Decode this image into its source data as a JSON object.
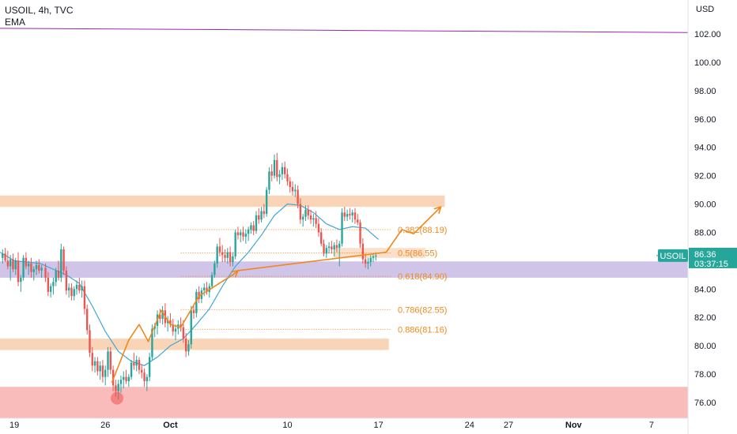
{
  "header": {
    "symbol_line": "USOIL, 4h, TVC",
    "indicator": "EMA"
  },
  "price_axis_unit": "USD",
  "colors": {
    "bull": "#26a69a",
    "bear": "#ef5350",
    "ema": "#3fa7d6",
    "trend": "#9c27b0",
    "zone": "#f7c59f",
    "support_zone": "#d1c4e9",
    "low_zone": "#f9b4b4",
    "fib": "#f0891c",
    "path": "#f0891c",
    "price_tag": "#26a69a"
  },
  "current_price": {
    "symbol": "USOIL",
    "price": "86.36",
    "countdown": "03:37:15"
  },
  "fib_levels": [
    {
      "ratio": "0.382",
      "price": 88.19,
      "label": "0.382(88.19)"
    },
    {
      "ratio": "0.5",
      "price": 86.55,
      "label": "0.5(86.55)"
    },
    {
      "ratio": "0.618",
      "price": 84.9,
      "label": "0.618(84.90)"
    },
    {
      "ratio": "0.786",
      "price": 82.55,
      "label": "0.786(82.55)"
    },
    {
      "ratio": "0.886",
      "price": 81.16,
      "label": "0.886(81.16)"
    }
  ],
  "chart_data": {
    "type": "candlestick",
    "title": "USOIL, 4h, TVC",
    "ylabel": "USD",
    "ylim": [
      75,
      104.5
    ],
    "y_ticks": [
      76,
      78,
      80,
      82,
      84,
      86,
      88,
      90,
      92,
      94,
      96,
      98,
      100,
      102
    ],
    "y_tick_labels": [
      "76.00",
      "78.00",
      "80.00",
      "82.00",
      "84.00",
      "86.00",
      "88.00",
      "90.00",
      "92.00",
      "94.00",
      "96.00",
      "98.00",
      "100.00",
      "102.00"
    ],
    "x_ticks": [
      {
        "label": "19",
        "day": 0
      },
      {
        "label": "26",
        "day": 7
      },
      {
        "label": "Oct",
        "day": 12
      },
      {
        "label": "10",
        "day": 21
      },
      {
        "label": "17",
        "day": 28
      },
      {
        "label": "24",
        "day": 35
      },
      {
        "label": "27",
        "day": 38
      },
      {
        "label": "Nov",
        "day": 43
      },
      {
        "label": "7",
        "day": 49
      }
    ],
    "xlim_days": [
      -1.1,
      51.8
    ],
    "ema_period_label": "EMA",
    "candles_note": "day offsets from Sep 19",
    "candles": [
      [
        -0.9,
        86.2,
        86.8,
        85.8,
        86.5
      ],
      [
        -0.7,
        86.5,
        86.9,
        85.9,
        86.0
      ],
      [
        -0.5,
        86.0,
        86.7,
        85.4,
        85.6
      ],
      [
        -0.3,
        85.6,
        86.4,
        84.6,
        86.1
      ],
      [
        -0.1,
        86.1,
        86.5,
        85.2,
        85.4
      ],
      [
        0.1,
        85.4,
        86.2,
        85.0,
        86.0
      ],
      [
        0.3,
        86.0,
        86.6,
        84.2,
        84.5
      ],
      [
        0.5,
        84.5,
        85.0,
        83.8,
        84.8
      ],
      [
        0.7,
        84.8,
        86.4,
        84.6,
        86.2
      ],
      [
        0.9,
        86.2,
        86.6,
        85.4,
        85.6
      ],
      [
        1.1,
        85.6,
        86.0,
        85.0,
        85.8
      ],
      [
        1.3,
        85.8,
        86.2,
        84.8,
        85.2
      ],
      [
        1.5,
        85.2,
        85.6,
        84.6,
        85.4
      ],
      [
        1.7,
        85.4,
        86.0,
        85.0,
        85.7
      ],
      [
        1.9,
        85.7,
        86.1,
        85.1,
        85.3
      ],
      [
        2.1,
        85.3,
        85.7,
        84.8,
        85.5
      ],
      [
        2.4,
        85.5,
        85.8,
        84.5,
        84.8
      ],
      [
        2.6,
        84.8,
        85.2,
        83.5,
        83.8
      ],
      [
        2.8,
        83.8,
        84.4,
        83.4,
        84.2
      ],
      [
        3.0,
        84.2,
        84.8,
        83.6,
        84.5
      ],
      [
        3.2,
        84.5,
        85.5,
        84.2,
        85.3
      ],
      [
        3.4,
        85.3,
        86.0,
        84.6,
        84.8
      ],
      [
        3.6,
        84.8,
        87.2,
        84.5,
        86.8
      ],
      [
        3.8,
        86.8,
        87.0,
        85.0,
        85.3
      ],
      [
        4.0,
        85.3,
        85.6,
        83.6,
        83.9
      ],
      [
        4.2,
        83.9,
        84.4,
        83.4,
        84.1
      ],
      [
        4.4,
        84.1,
        84.4,
        83.2,
        83.5
      ],
      [
        4.6,
        83.5,
        84.2,
        83.2,
        84.0
      ],
      [
        4.8,
        84.0,
        84.6,
        83.6,
        84.3
      ],
      [
        5.0,
        84.3,
        84.8,
        83.7,
        83.9
      ],
      [
        5.2,
        83.9,
        84.6,
        83.4,
        84.2
      ],
      [
        5.4,
        84.2,
        84.6,
        82.2,
        82.6
      ],
      [
        5.6,
        82.6,
        82.9,
        80.8,
        81.1
      ],
      [
        5.8,
        81.1,
        81.5,
        79.2,
        79.5
      ],
      [
        6.0,
        79.5,
        79.9,
        78.2,
        78.6
      ],
      [
        6.2,
        78.6,
        79.2,
        78.1,
        78.9
      ],
      [
        6.4,
        78.9,
        79.2,
        77.9,
        78.2
      ],
      [
        6.6,
        78.2,
        78.9,
        77.6,
        78.6
      ],
      [
        6.8,
        78.6,
        79.0,
        77.4,
        77.8
      ],
      [
        7.0,
        77.8,
        78.6,
        77.2,
        78.3
      ],
      [
        7.2,
        78.3,
        79.9,
        77.8,
        79.6
      ],
      [
        7.4,
        79.6,
        79.9,
        78.0,
        78.3
      ],
      [
        7.6,
        78.3,
        78.6,
        76.8,
        77.2
      ],
      [
        7.8,
        77.2,
        77.6,
        76.4,
        76.8
      ],
      [
        8.0,
        76.8,
        77.6,
        76.2,
        77.3
      ],
      [
        8.2,
        77.3,
        77.9,
        76.7,
        77.6
      ],
      [
        8.4,
        77.6,
        78.2,
        77.0,
        77.8
      ],
      [
        8.6,
        77.8,
        78.3,
        77.3,
        77.5
      ],
      [
        8.8,
        77.5,
        78.0,
        77.1,
        77.8
      ],
      [
        9.0,
        77.8,
        79.0,
        77.6,
        78.8
      ],
      [
        9.2,
        78.8,
        79.5,
        78.3,
        78.6
      ],
      [
        9.4,
        78.6,
        79.3,
        78.2,
        79.0
      ],
      [
        9.6,
        79.0,
        79.2,
        78.0,
        78.3
      ],
      [
        9.8,
        78.3,
        78.7,
        77.7,
        78.1
      ],
      [
        10.0,
        78.1,
        78.4,
        77.1,
        77.5
      ],
      [
        10.2,
        77.5,
        78.0,
        76.8,
        77.8
      ],
      [
        10.4,
        77.8,
        79.5,
        77.5,
        79.2
      ],
      [
        10.6,
        79.2,
        81.5,
        79.0,
        81.2
      ],
      [
        10.8,
        81.2,
        81.6,
        80.6,
        81.4
      ],
      [
        11.0,
        81.4,
        82.5,
        80.8,
        82.2
      ],
      [
        11.2,
        82.2,
        82.6,
        81.6,
        81.9
      ],
      [
        11.4,
        81.9,
        82.8,
        81.5,
        82.5
      ],
      [
        11.6,
        82.5,
        83.0,
        81.3,
        81.6
      ],
      [
        11.8,
        81.6,
        82.1,
        81.0,
        81.8
      ],
      [
        12.0,
        81.8,
        82.3,
        81.3,
        81.5
      ],
      [
        12.2,
        81.5,
        81.9,
        80.7,
        81.0
      ],
      [
        12.4,
        81.0,
        81.5,
        80.4,
        81.2
      ],
      [
        12.6,
        81.2,
        81.8,
        80.8,
        81.5
      ],
      [
        12.8,
        81.5,
        82.0,
        81.0,
        81.3
      ],
      [
        13.0,
        81.3,
        81.8,
        80.2,
        80.5
      ],
      [
        13.2,
        80.5,
        80.9,
        79.2,
        79.6
      ],
      [
        13.4,
        79.6,
        80.4,
        79.3,
        80.1
      ],
      [
        13.6,
        80.1,
        82.8,
        79.8,
        82.5
      ],
      [
        13.8,
        82.5,
        82.9,
        81.9,
        82.3
      ],
      [
        14.0,
        82.3,
        84.0,
        82.0,
        83.8
      ],
      [
        14.2,
        83.8,
        84.2,
        83.0,
        83.3
      ],
      [
        14.4,
        83.3,
        84.1,
        83.0,
        83.9
      ],
      [
        14.6,
        83.9,
        84.4,
        83.5,
        84.1
      ],
      [
        14.8,
        84.1,
        84.5,
        83.6,
        83.8
      ],
      [
        15.0,
        83.8,
        84.4,
        83.4,
        84.2
      ],
      [
        15.2,
        84.2,
        85.2,
        84.0,
        85.0
      ],
      [
        15.4,
        85.0,
        86.0,
        84.8,
        85.8
      ],
      [
        15.6,
        85.8,
        87.2,
        85.5,
        87.0
      ],
      [
        15.8,
        87.0,
        87.6,
        86.3,
        86.6
      ],
      [
        16.0,
        86.6,
        87.1,
        85.9,
        86.4
      ],
      [
        16.2,
        86.4,
        86.8,
        85.9,
        86.2
      ],
      [
        16.4,
        86.2,
        86.9,
        85.8,
        86.6
      ],
      [
        16.6,
        86.6,
        87.0,
        85.6,
        85.9
      ],
      [
        16.8,
        85.9,
        86.6,
        85.6,
        86.3
      ],
      [
        17.0,
        86.3,
        88.2,
        86.1,
        88.0
      ],
      [
        17.2,
        88.0,
        88.4,
        87.5,
        87.8
      ],
      [
        17.4,
        87.8,
        88.2,
        87.3,
        88.0
      ],
      [
        17.6,
        88.0,
        88.4,
        87.4,
        87.7
      ],
      [
        17.8,
        87.7,
        88.2,
        87.2,
        87.9
      ],
      [
        18.0,
        87.9,
        88.4,
        87.4,
        88.2
      ],
      [
        18.2,
        88.2,
        88.7,
        87.9,
        88.5
      ],
      [
        18.4,
        88.5,
        88.8,
        87.8,
        88.1
      ],
      [
        18.6,
        88.1,
        89.5,
        87.9,
        89.2
      ],
      [
        18.8,
        89.2,
        89.7,
        88.6,
        88.9
      ],
      [
        19.0,
        88.9,
        89.8,
        88.7,
        89.5
      ],
      [
        19.2,
        89.5,
        90.0,
        89.0,
        89.3
      ],
      [
        19.4,
        89.3,
        91.2,
        89.1,
        91.0
      ],
      [
        19.6,
        91.0,
        92.6,
        90.7,
        92.3
      ],
      [
        19.8,
        92.3,
        92.8,
        91.6,
        92.0
      ],
      [
        20.0,
        92.0,
        93.5,
        91.8,
        93.1
      ],
      [
        20.2,
        93.1,
        93.6,
        91.6,
        91.9
      ],
      [
        20.4,
        91.9,
        92.4,
        91.4,
        92.1
      ],
      [
        20.6,
        92.1,
        92.9,
        91.7,
        92.6
      ],
      [
        20.8,
        92.6,
        93.0,
        91.8,
        92.1
      ],
      [
        21.0,
        92.1,
        92.5,
        91.3,
        91.6
      ],
      [
        21.2,
        91.6,
        91.9,
        90.8,
        91.2
      ],
      [
        21.4,
        91.2,
        91.6,
        90.6,
        90.9
      ],
      [
        21.6,
        90.9,
        91.4,
        90.5,
        91.0
      ],
      [
        21.8,
        91.0,
        91.3,
        89.7,
        90.0
      ],
      [
        22.0,
        90.0,
        90.4,
        88.6,
        88.9
      ],
      [
        22.2,
        88.9,
        89.3,
        88.4,
        89.1
      ],
      [
        22.4,
        89.1,
        89.9,
        88.8,
        89.6
      ],
      [
        22.6,
        89.6,
        89.9,
        88.9,
        89.2
      ],
      [
        22.8,
        89.2,
        89.6,
        88.6,
        88.9
      ],
      [
        23.0,
        88.9,
        89.3,
        88.4,
        89.0
      ],
      [
        23.2,
        89.0,
        89.5,
        88.3,
        88.6
      ],
      [
        23.4,
        88.6,
        89.0,
        87.7,
        88.0
      ],
      [
        23.6,
        88.0,
        88.3,
        87.0,
        87.2
      ],
      [
        23.8,
        87.2,
        87.5,
        86.3,
        86.5
      ],
      [
        24.0,
        86.5,
        87.1,
        86.2,
        86.9
      ],
      [
        24.2,
        86.9,
        87.3,
        86.5,
        87.0
      ],
      [
        24.4,
        87.0,
        87.4,
        86.5,
        86.8
      ],
      [
        24.6,
        86.8,
        87.3,
        86.3,
        87.1
      ],
      [
        24.8,
        87.1,
        87.5,
        86.6,
        86.9
      ],
      [
        25.0,
        86.9,
        87.4,
        85.6,
        87.2
      ],
      [
        25.2,
        87.2,
        89.7,
        87.0,
        89.4
      ],
      [
        25.4,
        89.4,
        89.8,
        88.8,
        89.1
      ],
      [
        25.6,
        89.1,
        89.6,
        88.8,
        89.3
      ],
      [
        25.8,
        89.3,
        89.7,
        88.9,
        89.2
      ],
      [
        26.0,
        89.2,
        89.6,
        88.7,
        89.4
      ],
      [
        26.2,
        89.4,
        89.7,
        88.6,
        88.9
      ],
      [
        26.4,
        88.9,
        89.3,
        88.5,
        88.7
      ],
      [
        26.6,
        88.7,
        88.9,
        86.9,
        87.2
      ],
      [
        26.8,
        87.2,
        87.6,
        85.8,
        86.1
      ],
      [
        27.0,
        86.1,
        86.5,
        85.5,
        85.8
      ],
      [
        27.2,
        85.8,
        86.2,
        85.4,
        85.9
      ],
      [
        27.4,
        85.9,
        86.4,
        85.6,
        86.2
      ],
      [
        27.6,
        86.2,
        86.5,
        85.9,
        86.3
      ],
      [
        27.8,
        86.3,
        86.6,
        86.0,
        86.36
      ]
    ],
    "ema": [
      [
        -1.1,
        86.6
      ],
      [
        0,
        86.0
      ],
      [
        1,
        85.9
      ],
      [
        2,
        85.8
      ],
      [
        3,
        85.4
      ],
      [
        4,
        85.0
      ],
      [
        5,
        84.4
      ],
      [
        6,
        82.8
      ],
      [
        7,
        81.0
      ],
      [
        8,
        79.6
      ],
      [
        9,
        78.9
      ],
      [
        10,
        78.6
      ],
      [
        11,
        79.2
      ],
      [
        12,
        80.0
      ],
      [
        13,
        80.5
      ],
      [
        14,
        81.5
      ],
      [
        15,
        82.6
      ],
      [
        16,
        84.2
      ],
      [
        17,
        85.6
      ],
      [
        18,
        86.6
      ],
      [
        19,
        87.8
      ],
      [
        20,
        89.2
      ],
      [
        21,
        90.0
      ],
      [
        22,
        89.9
      ],
      [
        23,
        89.4
      ],
      [
        24,
        88.6
      ],
      [
        25,
        88.2
      ],
      [
        26,
        88.4
      ],
      [
        27,
        88.3
      ],
      [
        28,
        87.5
      ]
    ],
    "trendline": [
      [
        -1.1,
        102.4
      ],
      [
        51.8,
        102.1
      ]
    ],
    "zones": [
      {
        "name": "resistance-zone",
        "x0": -1.1,
        "x1": 33.1,
        "y0": 89.8,
        "y1": 90.6
      },
      {
        "name": "support-zone",
        "x0": -1.1,
        "x1": 51.8,
        "y0": 84.8,
        "y1": 85.95
      },
      {
        "name": "demand-zone",
        "x0": -1.1,
        "x1": 28.8,
        "y0": 79.7,
        "y1": 80.5
      },
      {
        "name": "low-zone",
        "x0": -1.1,
        "x1": 51.8,
        "y0": 74.9,
        "y1": 77.1
      },
      {
        "name": "fib-box",
        "x0": 24.6,
        "x1": 31.6,
        "y0": 86.2,
        "y1": 86.9
      }
    ],
    "fib_x_range": [
      12.8,
      29.0
    ],
    "projection_path": [
      [
        7.5,
        77.4
      ],
      [
        8.8,
        80.4
      ],
      [
        9.6,
        81.5
      ],
      [
        10.3,
        80.3
      ],
      [
        11.3,
        82.5
      ],
      [
        12.0,
        81.5
      ],
      [
        12.8,
        81.3
      ],
      [
        14.2,
        83.5
      ],
      [
        16.8,
        85.0
      ],
      [
        17.2,
        85.3
      ],
      [
        28.6,
        86.6
      ],
      [
        29.8,
        88.2
      ],
      [
        30.7,
        87.9
      ],
      [
        32.8,
        89.8
      ]
    ],
    "low_marker": [
      7.9,
      76.3
    ],
    "legend": "none",
    "grid": false
  }
}
